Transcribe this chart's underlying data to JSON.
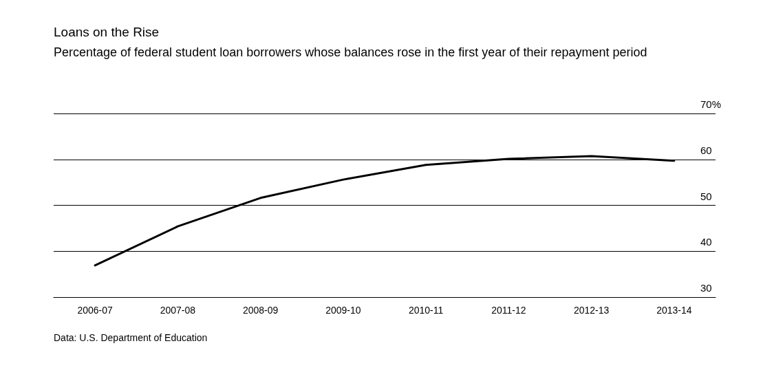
{
  "chart_data": {
    "type": "line",
    "title": "Loans on the Rise",
    "subtitle": "Percentage of federal student loan borrowers whose balances rose in the first year of their repayment period",
    "categories": [
      "2006-07",
      "2007-08",
      "2008-09",
      "2009-10",
      "2010-11",
      "2011-12",
      "2012-13",
      "2013-14"
    ],
    "series": [
      {
        "color": "#000000",
        "values": [
          36.9,
          45.4,
          51.6,
          55.6,
          58.8,
          60.1,
          60.7,
          59.7
        ]
      }
    ],
    "ylim": [
      30,
      70
    ],
    "yticks": [
      30,
      40,
      50,
      60,
      {
        "value": 70,
        "label": "70%"
      }
    ],
    "grid": "y",
    "marker": "none",
    "line_style": "solid",
    "annotations": [
      "Data: U.S. Department of Education"
    ]
  }
}
